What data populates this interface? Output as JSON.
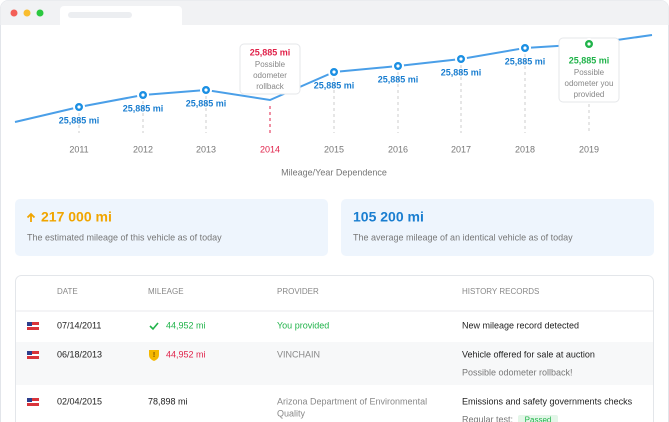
{
  "chart": {
    "points": [
      {
        "year": "2011",
        "label": "25,885 mi"
      },
      {
        "year": "2012",
        "label": "25,885 mi"
      },
      {
        "year": "2013",
        "label": "25,885 mi"
      },
      {
        "year": "2014",
        "callout": [
          "25,885 mi",
          "Possible",
          "odometer",
          "rollback"
        ]
      },
      {
        "year": "2015",
        "label": "25,885 mi"
      },
      {
        "year": "2016",
        "label": "25,885 mi"
      },
      {
        "year": "2017",
        "label": "25,885 mi"
      },
      {
        "year": "2018",
        "label": "25,885 mi"
      },
      {
        "year": "2019",
        "callout": [
          "25,885 mi",
          "Possible",
          "odometer you",
          "provided"
        ]
      }
    ],
    "caption": "Mileage/Year Dependence"
  },
  "cards": [
    {
      "value": "217 000 mi",
      "text": "The estimated mileage of this vehicle as of today"
    },
    {
      "value": "105 200 mi",
      "text": "The average mileage of an identical vehicle as of today"
    }
  ],
  "table": {
    "headers": [
      "DATE",
      "MILEAGE",
      "PROVIDER",
      "HISTORY RECORDS"
    ],
    "rows": [
      {
        "date": "07/14/2011",
        "mileage": "44,952 mi",
        "provider": [
          "You provided"
        ],
        "records": [
          "New mileage record detected"
        ]
      },
      {
        "date": "06/18/2013",
        "mileage": "44,952 mi",
        "provider": [
          "VINCHAIN"
        ],
        "records": [
          "Vehicle offered for sale at auction",
          "Possible odometer rollback!"
        ]
      },
      {
        "date": "02/04/2015",
        "mileage": "78,898 mi",
        "provider": [
          "Arizona Department of Environmental",
          "Quality"
        ],
        "records": [
          "Emissions and safety governments checks",
          "Regular test:"
        ],
        "badge": "Passed"
      }
    ]
  }
}
